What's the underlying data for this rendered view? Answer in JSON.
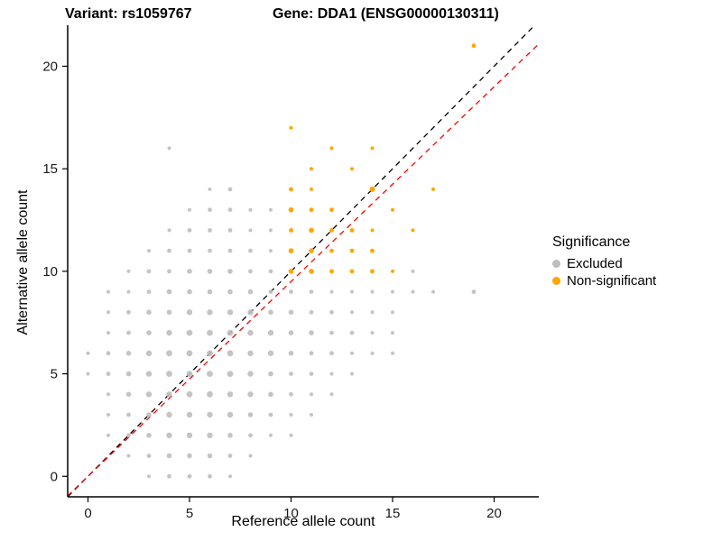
{
  "header": {
    "variant_title": "Variant: rs1059767",
    "gene_title": "Gene: DDA1 (ENSG00000130311)"
  },
  "axes": {
    "x_label": "Reference allele count",
    "y_label": "Alternative allele count"
  },
  "legend": {
    "title": "Significance",
    "items": [
      {
        "label": "Excluded",
        "color": "#BEBEBE"
      },
      {
        "label": "Non-significant",
        "color": "#FFA500"
      }
    ]
  },
  "chart_data": {
    "type": "scatter",
    "title_left": "Variant: rs1059767",
    "title_right": "Gene: DDA1 (ENSG00000130311)",
    "xlabel": "Reference allele count",
    "ylabel": "Alternative allele count",
    "x_domain": [
      -1,
      22.2
    ],
    "y_domain": [
      -1,
      22
    ],
    "x_ticks": [
      0,
      5,
      10,
      15,
      20
    ],
    "y_ticks": [
      0,
      5,
      10,
      15,
      20
    ],
    "grid": false,
    "legend_position": "right",
    "lines": [
      {
        "name": "identity",
        "slope": 1,
        "intercept": 0,
        "color": "#000000",
        "style": "dashed"
      },
      {
        "name": "fitted-ratio",
        "slope": 0.95,
        "intercept": 0,
        "color": "#FF0000",
        "style": "dashed"
      }
    ],
    "series": [
      {
        "name": "Excluded",
        "color": "#BEBEBE",
        "opacity": 0.9,
        "points": [
          [
            3,
            0,
            2
          ],
          [
            4,
            0,
            2.4
          ],
          [
            5,
            0,
            2.4
          ],
          [
            6,
            0,
            2.4
          ],
          [
            7,
            0,
            2
          ],
          [
            2,
            1,
            2
          ],
          [
            3,
            1,
            2.4
          ],
          [
            4,
            1,
            2.8
          ],
          [
            5,
            1,
            2.8
          ],
          [
            6,
            1,
            2.8
          ],
          [
            7,
            1,
            2.4
          ],
          [
            8,
            1,
            2
          ],
          [
            1,
            2,
            2
          ],
          [
            2,
            2,
            2.4
          ],
          [
            3,
            2,
            2.8
          ],
          [
            4,
            2,
            3.2
          ],
          [
            5,
            2,
            3.2
          ],
          [
            6,
            2,
            3.2
          ],
          [
            7,
            2,
            2.8
          ],
          [
            8,
            2,
            2.4
          ],
          [
            9,
            2,
            2
          ],
          [
            10,
            2,
            2
          ],
          [
            1,
            3,
            2
          ],
          [
            2,
            3,
            2.4
          ],
          [
            3,
            3,
            2.8
          ],
          [
            4,
            3,
            3.2
          ],
          [
            5,
            3,
            3.2
          ],
          [
            6,
            3,
            3.2
          ],
          [
            7,
            3,
            3.2
          ],
          [
            8,
            3,
            2.8
          ],
          [
            9,
            3,
            2.4
          ],
          [
            10,
            3,
            2
          ],
          [
            11,
            3,
            2
          ],
          [
            1,
            4,
            2
          ],
          [
            2,
            4,
            2.8
          ],
          [
            3,
            4,
            3.2
          ],
          [
            4,
            4,
            3.2
          ],
          [
            5,
            4,
            3.4
          ],
          [
            6,
            4,
            3.4
          ],
          [
            7,
            4,
            3.2
          ],
          [
            8,
            4,
            3.2
          ],
          [
            9,
            4,
            2.8
          ],
          [
            10,
            4,
            2.4
          ],
          [
            11,
            4,
            2
          ],
          [
            12,
            4,
            2
          ],
          [
            0,
            5,
            2
          ],
          [
            1,
            5,
            2.4
          ],
          [
            2,
            5,
            2.8
          ],
          [
            3,
            5,
            3.2
          ],
          [
            4,
            5,
            3.4
          ],
          [
            5,
            5,
            3.4
          ],
          [
            6,
            5,
            3.4
          ],
          [
            7,
            5,
            3.4
          ],
          [
            8,
            5,
            3.2
          ],
          [
            9,
            5,
            2.8
          ],
          [
            10,
            5,
            2.4
          ],
          [
            11,
            5,
            2.4
          ],
          [
            12,
            5,
            2
          ],
          [
            13,
            5,
            2
          ],
          [
            0,
            6,
            2
          ],
          [
            1,
            6,
            2.4
          ],
          [
            2,
            6,
            2.8
          ],
          [
            3,
            6,
            3.2
          ],
          [
            4,
            6,
            3.4
          ],
          [
            5,
            6,
            3.4
          ],
          [
            6,
            6,
            3.4
          ],
          [
            7,
            6,
            3.4
          ],
          [
            8,
            6,
            3.2
          ],
          [
            9,
            6,
            3.2
          ],
          [
            10,
            6,
            2.8
          ],
          [
            11,
            6,
            2.4
          ],
          [
            12,
            6,
            2.4
          ],
          [
            13,
            6,
            2
          ],
          [
            14,
            6,
            2
          ],
          [
            15,
            6,
            2
          ],
          [
            1,
            7,
            2
          ],
          [
            2,
            7,
            2.4
          ],
          [
            3,
            7,
            2.8
          ],
          [
            4,
            7,
            3.2
          ],
          [
            5,
            7,
            3.4
          ],
          [
            6,
            7,
            3.4
          ],
          [
            7,
            7,
            3.4
          ],
          [
            8,
            7,
            3.2
          ],
          [
            9,
            7,
            3.2
          ],
          [
            10,
            7,
            2.8
          ],
          [
            11,
            7,
            2.8
          ],
          [
            12,
            7,
            2.4
          ],
          [
            13,
            7,
            2.4
          ],
          [
            14,
            7,
            2
          ],
          [
            15,
            7,
            2
          ],
          [
            1,
            8,
            2
          ],
          [
            2,
            8,
            2.4
          ],
          [
            3,
            8,
            2.8
          ],
          [
            4,
            8,
            2.8
          ],
          [
            5,
            8,
            3.2
          ],
          [
            6,
            8,
            3.2
          ],
          [
            7,
            8,
            3.2
          ],
          [
            8,
            8,
            3.2
          ],
          [
            9,
            8,
            2.8
          ],
          [
            10,
            8,
            2.8
          ],
          [
            11,
            8,
            2.4
          ],
          [
            12,
            8,
            2.4
          ],
          [
            13,
            8,
            2
          ],
          [
            14,
            8,
            2
          ],
          [
            15,
            8,
            2
          ],
          [
            1,
            9,
            2
          ],
          [
            2,
            9,
            2
          ],
          [
            3,
            9,
            2.4
          ],
          [
            4,
            9,
            2.8
          ],
          [
            5,
            9,
            2.8
          ],
          [
            6,
            9,
            2.8
          ],
          [
            7,
            9,
            2.8
          ],
          [
            8,
            9,
            2.8
          ],
          [
            9,
            9,
            2.4
          ],
          [
            10,
            9,
            2.4
          ],
          [
            11,
            9,
            2.4
          ],
          [
            12,
            9,
            2
          ],
          [
            13,
            9,
            2
          ],
          [
            14,
            9,
            2
          ],
          [
            15,
            9,
            2
          ],
          [
            16,
            9,
            2
          ],
          [
            17,
            9,
            2
          ],
          [
            19,
            9,
            2.4
          ],
          [
            2,
            10,
            2
          ],
          [
            3,
            10,
            2.4
          ],
          [
            4,
            10,
            2.4
          ],
          [
            5,
            10,
            2.8
          ],
          [
            6,
            10,
            2.8
          ],
          [
            7,
            10,
            2.8
          ],
          [
            8,
            10,
            2.4
          ],
          [
            9,
            10,
            2.4
          ],
          [
            16,
            10,
            2
          ],
          [
            3,
            11,
            2
          ],
          [
            4,
            11,
            2.4
          ],
          [
            5,
            11,
            2.4
          ],
          [
            6,
            11,
            2.4
          ],
          [
            7,
            11,
            2.4
          ],
          [
            8,
            11,
            2.4
          ],
          [
            9,
            11,
            2
          ],
          [
            4,
            12,
            2
          ],
          [
            5,
            12,
            2.4
          ],
          [
            6,
            12,
            2.4
          ],
          [
            7,
            12,
            2.4
          ],
          [
            8,
            12,
            2
          ],
          [
            9,
            12,
            2
          ],
          [
            5,
            13,
            2
          ],
          [
            6,
            13,
            2.4
          ],
          [
            7,
            13,
            2.4
          ],
          [
            8,
            13,
            2
          ],
          [
            9,
            13,
            2
          ],
          [
            6,
            14,
            2
          ],
          [
            7,
            14,
            2.4
          ],
          [
            4,
            16,
            2
          ]
        ]
      },
      {
        "name": "Non-significant",
        "color": "#FFA500",
        "opacity": 1,
        "points": [
          [
            10,
            10,
            2.8
          ],
          [
            11,
            10,
            2.8
          ],
          [
            12,
            10,
            2.4
          ],
          [
            13,
            10,
            2.4
          ],
          [
            14,
            10,
            2.4
          ],
          [
            15,
            10,
            2
          ],
          [
            10,
            11,
            2.8
          ],
          [
            11,
            11,
            2.8
          ],
          [
            12,
            11,
            2.4
          ],
          [
            13,
            11,
            2.4
          ],
          [
            14,
            11,
            2.4
          ],
          [
            10,
            12,
            2.4
          ],
          [
            11,
            12,
            2.8
          ],
          [
            12,
            12,
            2.4
          ],
          [
            13,
            12,
            2.4
          ],
          [
            14,
            12,
            2
          ],
          [
            16,
            12,
            2
          ],
          [
            10,
            13,
            2.8
          ],
          [
            11,
            13,
            2.4
          ],
          [
            12,
            13,
            2.4
          ],
          [
            15,
            13,
            2
          ],
          [
            10,
            14,
            2.4
          ],
          [
            11,
            14,
            2
          ],
          [
            14,
            14,
            3
          ],
          [
            17,
            14,
            2
          ],
          [
            11,
            15,
            2
          ],
          [
            13,
            15,
            2
          ],
          [
            12,
            16,
            2
          ],
          [
            14,
            16,
            2
          ],
          [
            10,
            17,
            2
          ],
          [
            19,
            21,
            2.4
          ]
        ]
      }
    ]
  }
}
